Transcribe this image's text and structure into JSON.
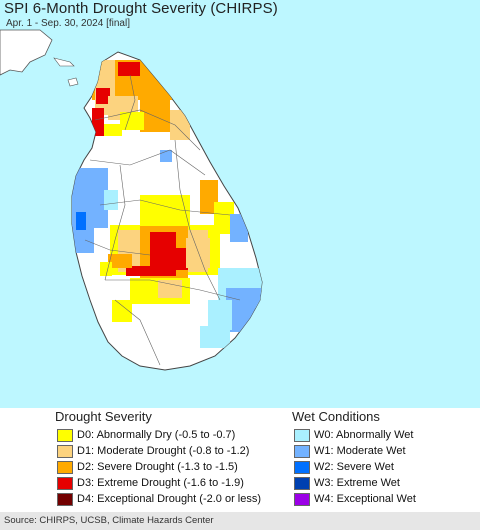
{
  "title": "SPI 6-Month Drought Severity (CHIRPS)",
  "subtitle": "Apr. 1 - Sep. 30, 2024 [final]",
  "colors": {
    "ocean": "#bdf7ff",
    "land": "#ffffff",
    "border": "#555555",
    "d0": "#ffff00",
    "d1": "#fcd37f",
    "d2": "#ffaa00",
    "d3": "#e60000",
    "d4": "#730000",
    "w0": "#aaf0ff",
    "w1": "#73b2ff",
    "w2": "#0070ff",
    "w3": "#0040b0",
    "w4": "#9b00e6"
  },
  "legend": {
    "drought_title": "Drought Severity",
    "wet_title": "Wet Conditions",
    "drought_items": [
      {
        "label": "D0: Abnormally Dry (-0.5 to -0.7)",
        "color": "#ffff00"
      },
      {
        "label": "D1: Moderate Drought (-0.8 to -1.2)",
        "color": "#fcd37f"
      },
      {
        "label": "D2: Severe Drought (-1.3 to -1.5)",
        "color": "#ffaa00"
      },
      {
        "label": "D3: Extreme Drought (-1.6 to -1.9)",
        "color": "#e60000"
      },
      {
        "label": "D4: Exceptional Drought (-2.0 or less)",
        "color": "#730000"
      }
    ],
    "wet_items": [
      {
        "label": "W0: Abnormally Wet",
        "color": "#aaf0ff"
      },
      {
        "label": "W1: Moderate Wet",
        "color": "#73b2ff"
      },
      {
        "label": "W2: Severe Wet",
        "color": "#0070ff"
      },
      {
        "label": "W3: Extreme Wet",
        "color": "#0040b0"
      },
      {
        "label": "W4: Exceptional Wet",
        "color": "#9b00e6"
      }
    ]
  },
  "source": "Source: CHIRPS, UCSB, Climate Hazards Center"
}
